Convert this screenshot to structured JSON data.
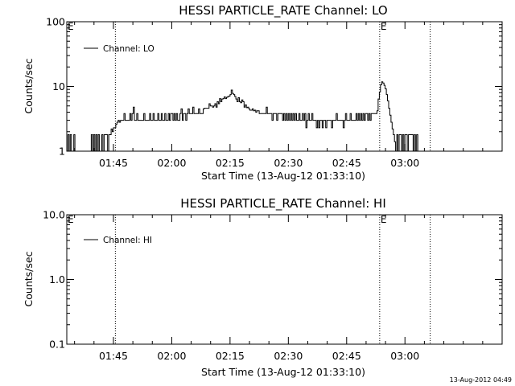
{
  "chart_data": [
    {
      "type": "line",
      "title": "HESSI PARTICLE_RATE Channel: LO",
      "xlabel": "Start Time (13-Aug-12 01:33:10)",
      "ylabel": "Counts/sec",
      "yscale": "log",
      "ylim": [
        1,
        100
      ],
      "yticks": [
        1,
        10,
        100
      ],
      "ytick_labels": [
        "1",
        "10",
        "100"
      ],
      "xlim_min": [
        0,
        112
      ],
      "xtick_min": [
        12,
        27,
        42,
        57,
        72,
        87
      ],
      "xtick_labels": [
        "01:45",
        "02:00",
        "02:15",
        "02:30",
        "02:45",
        "03:00"
      ],
      "legend": "Channel: LO",
      "legend_position": "upper-left",
      "event_lines_min": [
        12.5,
        80.5,
        93.5
      ],
      "flag_text": "E",
      "flags_min": [
        0,
        80.5
      ],
      "series": [
        {
          "name": "Channel: LO",
          "x_min": [
            0.0,
            0.3,
            0.6,
            0.9,
            1.2,
            1.5,
            1.8,
            2.1,
            2.4,
            6.0,
            6.3,
            6.6,
            6.9,
            7.2,
            7.5,
            7.8,
            8.1,
            8.4,
            8.7,
            9.0,
            9.3,
            9.6,
            9.9,
            10.2,
            10.5,
            10.8,
            11.1,
            11.4,
            11.7,
            12.0,
            12.3,
            12.6,
            12.9,
            13.2,
            13.5,
            13.8,
            14.1,
            14.4,
            14.7,
            15.0,
            15.3,
            15.6,
            15.9,
            16.2,
            16.5,
            16.8,
            17.1,
            17.4,
            17.7,
            18.0,
            18.3,
            18.6,
            18.9,
            19.2,
            19.5,
            19.8,
            20.1,
            20.4,
            20.7,
            21.0,
            21.3,
            21.6,
            21.9,
            22.2,
            22.5,
            22.8,
            23.1,
            23.4,
            23.7,
            24.0,
            24.3,
            24.6,
            24.9,
            25.2,
            25.5,
            25.8,
            26.1,
            26.4,
            26.7,
            27.0,
            27.3,
            27.6,
            27.9,
            28.2,
            28.5,
            28.8,
            29.1,
            29.4,
            29.7,
            30.0,
            30.3,
            30.6,
            30.9,
            31.2,
            31.5,
            31.8,
            32.1,
            32.4,
            32.7,
            33.0,
            33.3,
            33.6,
            33.9,
            34.2,
            34.5,
            34.8,
            35.1,
            35.4,
            35.7,
            36.0,
            36.3,
            36.6,
            36.9,
            37.2,
            37.5,
            37.8,
            38.1,
            38.4,
            38.7,
            39.0,
            39.3,
            39.6,
            39.9,
            40.2,
            40.5,
            40.8,
            41.1,
            41.4,
            41.7,
            42.0,
            42.3,
            42.6,
            42.9,
            43.2,
            43.5,
            43.8,
            44.1,
            44.4,
            44.7,
            45.0,
            45.3,
            45.6,
            45.9,
            46.2,
            46.5,
            46.8,
            47.1,
            47.4,
            47.7,
            48.0,
            48.3,
            48.6,
            48.9,
            49.2,
            49.5,
            49.8,
            50.1,
            50.4,
            50.7,
            51.0,
            51.3,
            51.6,
            51.9,
            52.2,
            52.5,
            52.8,
            53.1,
            53.4,
            53.7,
            54.0,
            54.3,
            54.6,
            54.9,
            55.2,
            55.5,
            55.8,
            56.1,
            56.4,
            56.7,
            57.0,
            57.3,
            57.6,
            57.9,
            58.2,
            58.5,
            58.8,
            59.1,
            59.4,
            59.7,
            60.0,
            60.3,
            60.6,
            60.9,
            61.2,
            61.5,
            61.8,
            62.1,
            62.4,
            62.7,
            63.0,
            63.3,
            63.6,
            63.9,
            64.2,
            64.5,
            64.8,
            65.1,
            65.4,
            65.7,
            66.0,
            66.3,
            66.6,
            66.9,
            67.2,
            67.5,
            67.8,
            68.1,
            68.4,
            68.7,
            69.0,
            69.3,
            69.6,
            69.9,
            70.2,
            70.5,
            70.8,
            71.1,
            71.4,
            71.7,
            72.0,
            72.3,
            72.6,
            72.9,
            73.2,
            73.5,
            73.8,
            74.1,
            74.4,
            74.7,
            75.0,
            75.3,
            75.6,
            75.9,
            76.2,
            76.5,
            76.8,
            77.1,
            77.4,
            77.7,
            78.0,
            78.3,
            78.6,
            78.9,
            79.2,
            79.5,
            79.8,
            80.1,
            80.4,
            80.7,
            81.0,
            81.3,
            81.6,
            81.9,
            82.2,
            82.5,
            82.8,
            83.1,
            83.4,
            83.7,
            84.0,
            84.3,
            84.6,
            84.9,
            85.2,
            85.5,
            85.8,
            86.1,
            86.4,
            86.7,
            87.0,
            87.3,
            87.6,
            87.9,
            88.2,
            88.5,
            88.8,
            89.1,
            89.4,
            89.7,
            90.0,
            90.3,
            90.6,
            90.9,
            91.2,
            91.5,
            91.8,
            92.1,
            92.4,
            92.7,
            93.0,
            93.3
          ],
          "values": [
            1.0,
            1.8,
            1.0,
            1.8,
            1.0,
            1.0,
            1.8,
            1.0,
            1.0,
            1.0,
            1.8,
            1.0,
            1.8,
            1.0,
            1.8,
            1.0,
            1.8,
            1.0,
            1.0,
            1.8,
            1.0,
            1.8,
            1.8,
            1.8,
            1.0,
            1.8,
            1.8,
            2.2,
            2.0,
            2.3,
            2.3,
            2.6,
            2.8,
            3.0,
            2.8,
            3.0,
            3.0,
            3.0,
            3.8,
            3.0,
            3.0,
            3.0,
            3.0,
            3.8,
            3.0,
            3.8,
            4.8,
            3.0,
            3.0,
            3.8,
            3.0,
            3.0,
            3.0,
            3.0,
            3.0,
            3.8,
            3.0,
            3.0,
            3.0,
            3.0,
            3.8,
            3.0,
            3.0,
            3.8,
            3.0,
            3.0,
            3.0,
            3.8,
            3.0,
            3.0,
            3.8,
            3.0,
            3.0,
            3.8,
            3.0,
            3.0,
            3.8,
            3.0,
            3.8,
            3.8,
            3.0,
            3.8,
            3.0,
            3.8,
            3.0,
            3.0,
            3.8,
            4.5,
            3.0,
            3.8,
            3.8,
            3.0,
            3.8,
            4.5,
            3.8,
            3.8,
            3.8,
            4.8,
            3.8,
            3.8,
            3.8,
            3.8,
            4.5,
            3.8,
            3.8,
            3.8,
            4.5,
            4.6,
            4.6,
            4.6,
            4.6,
            5.4,
            5.0,
            5.0,
            4.8,
            5.0,
            5.4,
            4.8,
            5.8,
            5.4,
            6.5,
            5.8,
            6.4,
            6.5,
            6.9,
            6.5,
            6.8,
            7.0,
            7.1,
            7.5,
            8.8,
            7.8,
            7.5,
            7.0,
            6.4,
            5.8,
            6.7,
            5.8,
            5.6,
            6.2,
            5.8,
            4.8,
            5.2,
            4.7,
            4.8,
            4.5,
            4.3,
            4.3,
            4.5,
            4.2,
            4.3,
            4.0,
            4.2,
            4.2,
            3.8,
            3.8,
            3.8,
            3.8,
            3.8,
            3.8,
            4.8,
            3.8,
            3.8,
            3.8,
            3.8,
            3.0,
            3.8,
            3.8,
            3.8,
            3.0,
            3.8,
            3.8,
            3.8,
            3.8,
            3.0,
            3.8,
            3.0,
            3.8,
            3.0,
            3.8,
            3.0,
            3.8,
            3.0,
            3.8,
            3.0,
            3.8,
            3.0,
            3.0,
            3.8,
            3.0,
            3.0,
            3.8,
            3.0,
            3.8,
            2.3,
            3.0,
            3.8,
            3.0,
            3.0,
            3.8,
            3.0,
            3.0,
            3.0,
            2.3,
            3.0,
            2.3,
            3.0,
            3.0,
            2.3,
            3.0,
            3.0,
            2.3,
            3.0,
            3.0,
            3.0,
            3.0,
            2.3,
            3.0,
            3.0,
            3.0,
            3.8,
            3.0,
            3.0,
            3.0,
            3.0,
            3.0,
            2.3,
            3.0,
            3.8,
            3.0,
            3.0,
            3.0,
            3.8,
            3.0,
            3.0,
            3.0,
            3.0,
            3.8,
            3.0,
            3.8,
            3.0,
            3.8,
            3.0,
            3.8,
            3.0,
            3.8,
            3.8,
            3.0,
            3.8,
            3.0,
            3.8,
            3.8,
            3.8,
            3.8,
            3.8,
            4.2,
            6.4,
            8.2,
            10.6,
            11.8,
            11.3,
            10.4,
            9.2,
            7.5,
            6.0,
            4.6,
            3.6,
            2.8,
            2.2,
            1.8,
            1.4,
            1.0,
            1.8,
            1.0,
            1.8,
            1.8,
            1.0,
            1.8,
            1.0,
            1.8,
            1.8,
            1.0,
            1.8,
            1.8,
            1.8,
            1.8,
            1.0,
            1.8,
            1.0,
            1.8,
            1.0
          ]
        }
      ]
    },
    {
      "type": "line",
      "title": "HESSI PARTICLE_RATE Channel: HI",
      "xlabel": "Start Time (13-Aug-12 01:33:10)",
      "ylabel": "Counts/sec",
      "yscale": "log",
      "ylim": [
        0.1,
        10
      ],
      "yticks": [
        0.1,
        1,
        10
      ],
      "ytick_labels": [
        "0.1",
        "1.0",
        "10.0"
      ],
      "xlim_min": [
        0,
        112
      ],
      "xtick_min": [
        12,
        27,
        42,
        57,
        72,
        87
      ],
      "xtick_labels": [
        "01:45",
        "02:00",
        "02:15",
        "02:30",
        "02:45",
        "03:00"
      ],
      "legend": "Channel: HI",
      "legend_position": "upper-left",
      "event_lines_min": [
        12.5,
        80.5,
        93.5
      ],
      "flag_text": "E",
      "flags_min": [
        0,
        80.5
      ],
      "series": [
        {
          "name": "Channel: HI",
          "x_min": [],
          "values": []
        }
      ]
    }
  ],
  "footer": {
    "timestamp": "13-Aug-2012 04:49"
  }
}
